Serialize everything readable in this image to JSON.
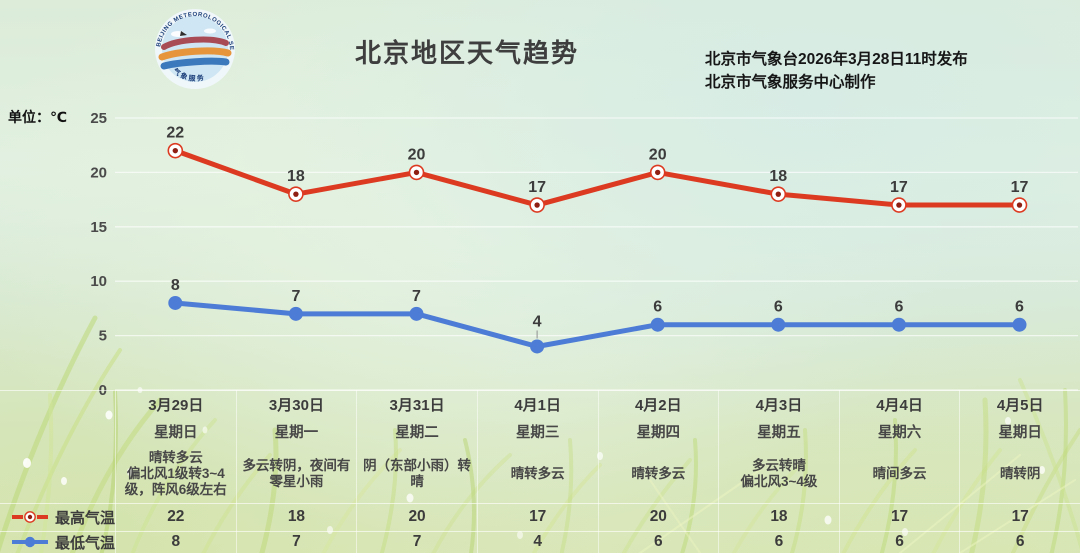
{
  "header": {
    "title": "北京地区天气趋势",
    "issued_line1": "北京市气象台2026年3月28日11时发布",
    "issued_line2": "北京市气象服务中心制作",
    "unit_label": "单位：℃",
    "logo_ring_text": "BEIJING METEOROLOGICAL SERVICE",
    "logo_bottom_text": "气象服务"
  },
  "colors": {
    "high": "#dc3b22",
    "high_marker_core": "#8e1f12",
    "low": "#4d7cd6",
    "grid": "rgba(255,255,255,0.65)",
    "label": "#3c3c3c"
  },
  "legend": {
    "high_label": "最高气温",
    "low_label": "最低气温"
  },
  "chart_data": {
    "type": "line",
    "title": "北京地区天气趋势",
    "x": [
      "3月29日",
      "3月30日",
      "3月31日",
      "4月1日",
      "4月2日",
      "4月3日",
      "4月4日",
      "4月5日"
    ],
    "series": [
      {
        "name": "最高气温",
        "color": "#dc3b22",
        "marker": "ring-dot",
        "values": [
          22,
          18,
          20,
          17,
          20,
          18,
          17,
          17
        ]
      },
      {
        "name": "最低气温",
        "color": "#4d7cd6",
        "marker": "dot",
        "values": [
          8,
          7,
          7,
          4,
          6,
          6,
          6,
          6
        ],
        "leader_line_at": 3
      }
    ],
    "ylabel": "单位：℃",
    "ylim": [
      0,
      25
    ],
    "yticks": [
      0,
      5,
      10,
      15,
      20,
      25
    ],
    "grid": true,
    "legend_position": "bottom-left"
  },
  "table": {
    "columns": [
      {
        "date": "3月29日",
        "weekday": "星期日",
        "weather": [
          "晴转多云",
          "偏北风1级转3~4级，阵风6级左右"
        ]
      },
      {
        "date": "3月30日",
        "weekday": "星期一",
        "weather": [
          "多云转阴，夜间有零星小雨"
        ]
      },
      {
        "date": "3月31日",
        "weekday": "星期二",
        "weather": [
          "阴（东部小雨）转晴"
        ]
      },
      {
        "date": "4月1日",
        "weekday": "星期三",
        "weather": [
          "晴转多云"
        ]
      },
      {
        "date": "4月2日",
        "weekday": "星期四",
        "weather": [
          "晴转多云"
        ]
      },
      {
        "date": "4月3日",
        "weekday": "星期五",
        "weather": [
          "多云转晴",
          "偏北风3~4级"
        ]
      },
      {
        "date": "4月4日",
        "weekday": "星期六",
        "weather": [
          "晴间多云"
        ]
      },
      {
        "date": "4月5日",
        "weekday": "星期日",
        "weather": [
          "晴转阴"
        ]
      }
    ]
  }
}
